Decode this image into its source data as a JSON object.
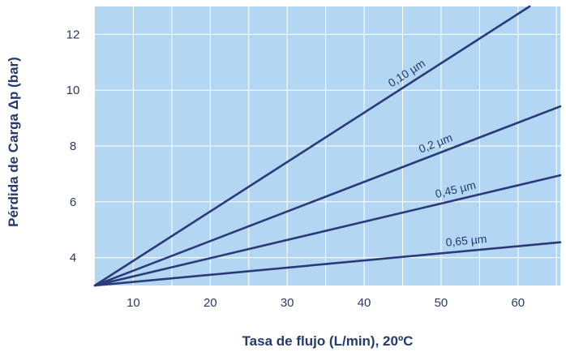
{
  "chart_data": {
    "type": "line",
    "xlabel": "Tasa de flujo (L/min), 20ºC",
    "ylabel": "Pérdida de Carga Δp (bar)",
    "xlim": [
      5,
      65.5
    ],
    "ylim": [
      3,
      13
    ],
    "xticks": [
      "10",
      "20",
      "30",
      "40",
      "50",
      "60"
    ],
    "yticks": [
      "4",
      "6",
      "8",
      "10",
      "12"
    ],
    "grid": true,
    "legend": "none",
    "colors": {
      "plot_bg": "#b3d7f3",
      "grid": "#ffffff",
      "line": "#2b3a78",
      "text": "#243a6e"
    },
    "series": [
      {
        "name": "0,10 µm",
        "x": [
          5,
          61.5
        ],
        "y": [
          3,
          13
        ]
      },
      {
        "name": "0,2 µm",
        "x": [
          5,
          65.5
        ],
        "y": [
          3,
          9.42
        ]
      },
      {
        "name": "0,45 µm",
        "x": [
          5,
          65.5
        ],
        "y": [
          3,
          6.95
        ]
      },
      {
        "name": "0,65 µm",
        "x": [
          5,
          65.5
        ],
        "y": [
          3,
          4.55
        ]
      }
    ]
  }
}
